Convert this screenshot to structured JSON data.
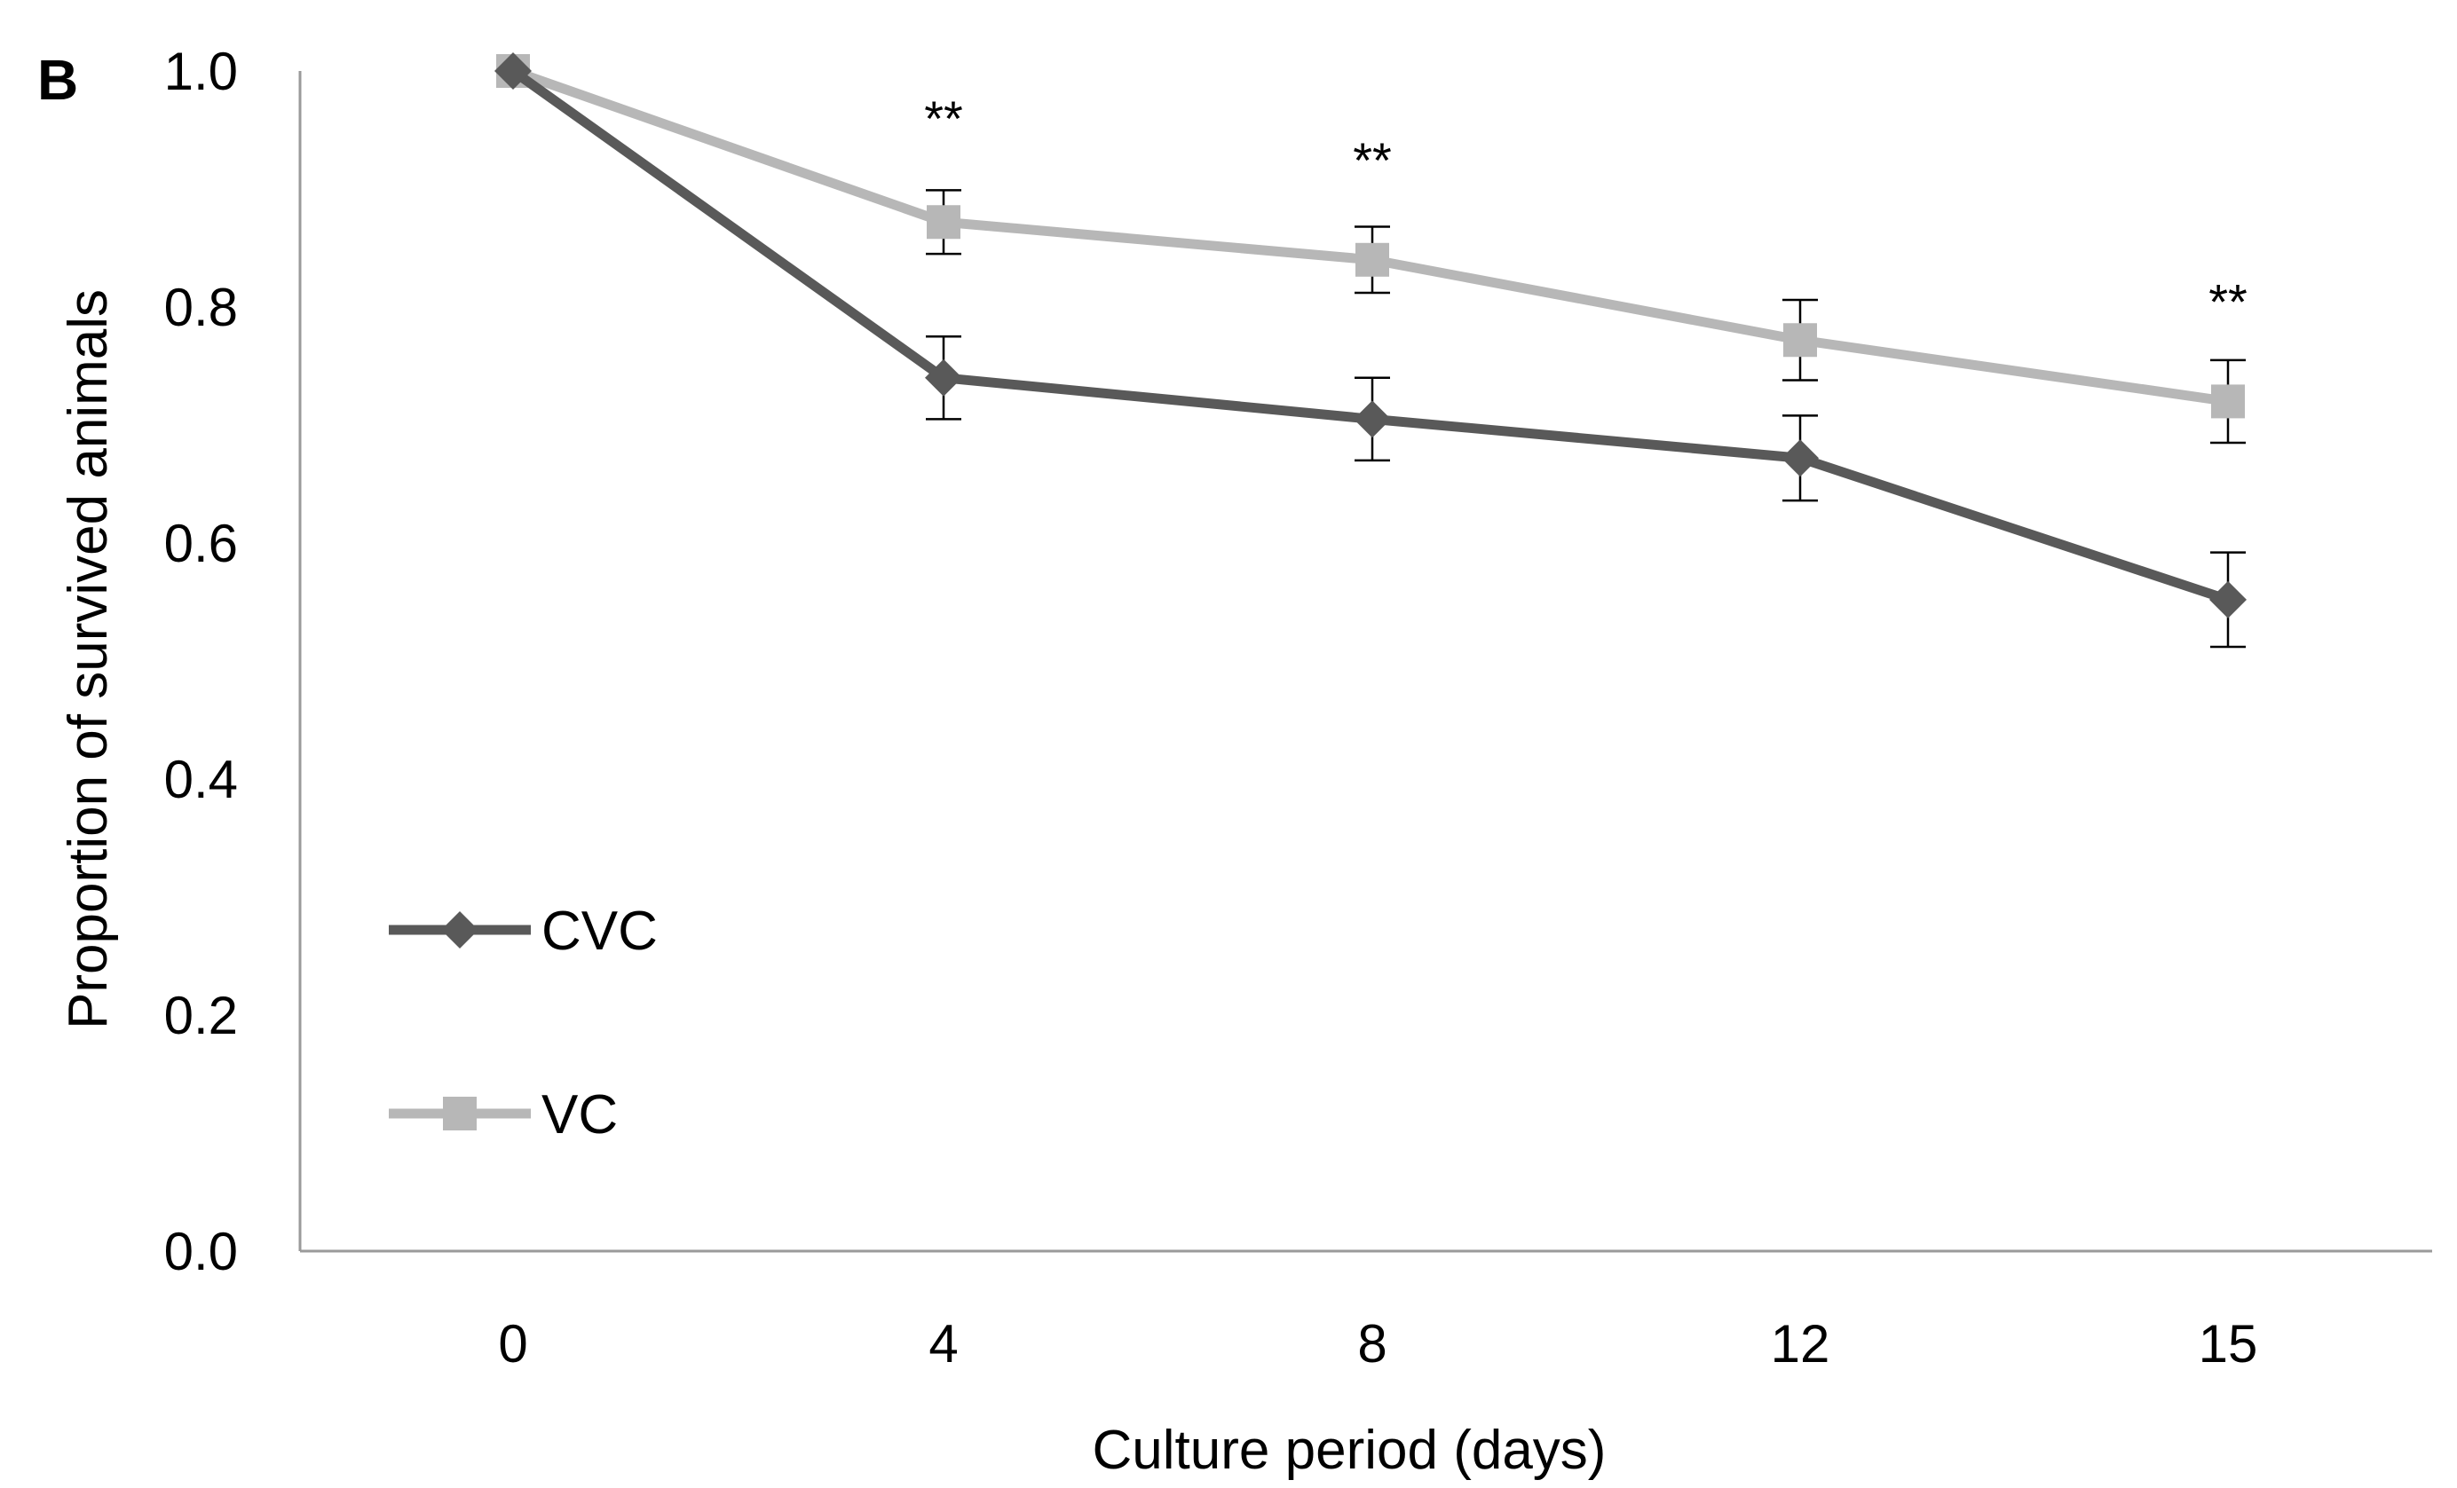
{
  "panel_label": "B",
  "chart_data": {
    "type": "line",
    "title": "",
    "xlabel": "Culture period (days)",
    "ylabel": "Proportion of survived animals",
    "categories": [
      "0",
      "4",
      "8",
      "12",
      "15"
    ],
    "yticks": [
      "0.0",
      "0.2",
      "0.4",
      "0.6",
      "0.8",
      "1.0"
    ],
    "ylim": [
      0,
      1
    ],
    "grid": false,
    "legend_position": "bottom-left",
    "series": [
      {
        "name": "CVC",
        "color": "#595959",
        "marker": "diamond",
        "values": [
          1.0,
          0.74,
          0.705,
          0.672,
          0.552
        ],
        "errors": [
          0,
          0.035,
          0.035,
          0.036,
          0.04
        ]
      },
      {
        "name": "VC",
        "color": "#b7b7b7",
        "marker": "square",
        "values": [
          1.0,
          0.872,
          0.84,
          0.772,
          0.72
        ],
        "errors": [
          0,
          0.027,
          0.028,
          0.034,
          0.035
        ]
      }
    ],
    "annotations": [
      {
        "category": "4",
        "text": "**",
        "y": 0.96
      },
      {
        "category": "8",
        "text": "**",
        "y": 0.925
      },
      {
        "category": "15",
        "text": "**",
        "y": 0.805
      }
    ]
  }
}
